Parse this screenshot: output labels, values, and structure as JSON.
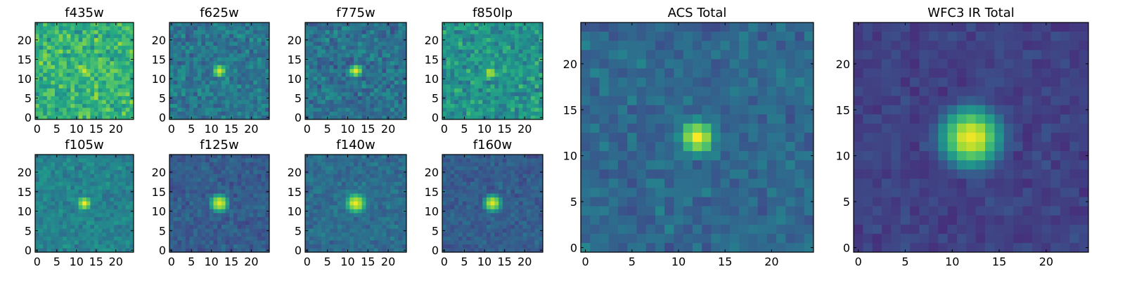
{
  "figure": "multi-band image cutouts",
  "colormap": "viridis",
  "colors": {
    "low": "#440154",
    "mid": "#21918c",
    "high": "#fde725",
    "frame": "#000000"
  },
  "chart_data": [
    {
      "type": "heatmap",
      "title": "f435w",
      "xlim": [
        0,
        24
      ],
      "ylim": [
        0,
        24
      ],
      "xticks": [
        "0",
        "5",
        "10",
        "15",
        "20"
      ],
      "yticks": [
        "0",
        "5",
        "10",
        "15",
        "20"
      ],
      "grid_size": 25,
      "source_center": [
        12,
        12
      ],
      "source_sigma": 1.6,
      "peak": 0.95,
      "background": 0.65,
      "noise": 0.22,
      "seed": 11
    },
    {
      "type": "heatmap",
      "title": "f625w",
      "xlim": [
        0,
        24
      ],
      "ylim": [
        0,
        24
      ],
      "xticks": [
        "0",
        "5",
        "10",
        "15",
        "20"
      ],
      "yticks": [
        "0",
        "5",
        "10",
        "15",
        "20"
      ],
      "grid_size": 25,
      "source_center": [
        12,
        12
      ],
      "source_sigma": 1.5,
      "peak": 0.97,
      "background": 0.4,
      "noise": 0.16,
      "seed": 23
    },
    {
      "type": "heatmap",
      "title": "f775w",
      "xlim": [
        0,
        24
      ],
      "ylim": [
        0,
        24
      ],
      "xticks": [
        "0",
        "5",
        "10",
        "15",
        "20"
      ],
      "yticks": [
        "0",
        "5",
        "10",
        "15",
        "20"
      ],
      "grid_size": 25,
      "source_center": [
        12,
        12
      ],
      "source_sigma": 1.5,
      "peak": 0.97,
      "background": 0.38,
      "noise": 0.17,
      "seed": 37
    },
    {
      "type": "heatmap",
      "title": "f850lp",
      "xlim": [
        0,
        24
      ],
      "ylim": [
        0,
        24
      ],
      "xticks": [
        "0",
        "5",
        "10",
        "15",
        "20"
      ],
      "yticks": [
        "0",
        "5",
        "10",
        "15",
        "20"
      ],
      "grid_size": 25,
      "source_center": [
        11.5,
        11.5
      ],
      "source_sigma": 1.6,
      "peak": 0.9,
      "background": 0.52,
      "noise": 0.2,
      "seed": 41
    },
    {
      "type": "heatmap",
      "title": "f105w",
      "xlim": [
        0,
        24
      ],
      "ylim": [
        0,
        24
      ],
      "xticks": [
        "0",
        "5",
        "10",
        "15",
        "20"
      ],
      "yticks": [
        "0",
        "5",
        "10",
        "15",
        "20"
      ],
      "grid_size": 25,
      "source_center": [
        12,
        12
      ],
      "source_sigma": 1.7,
      "peak": 0.97,
      "background": 0.45,
      "noise": 0.12,
      "seed": 53
    },
    {
      "type": "heatmap",
      "title": "f125w",
      "xlim": [
        0,
        24
      ],
      "ylim": [
        0,
        24
      ],
      "xticks": [
        "0",
        "5",
        "10",
        "15",
        "20"
      ],
      "yticks": [
        "0",
        "5",
        "10",
        "15",
        "20"
      ],
      "grid_size": 25,
      "source_center": [
        12,
        12
      ],
      "source_sigma": 2.0,
      "peak": 0.98,
      "background": 0.3,
      "noise": 0.1,
      "seed": 67
    },
    {
      "type": "heatmap",
      "title": "f140w",
      "xlim": [
        0,
        24
      ],
      "ylim": [
        0,
        24
      ],
      "xticks": [
        "0",
        "5",
        "10",
        "15",
        "20"
      ],
      "yticks": [
        "0",
        "5",
        "10",
        "15",
        "20"
      ],
      "grid_size": 25,
      "source_center": [
        12,
        12
      ],
      "source_sigma": 2.3,
      "peak": 0.98,
      "background": 0.36,
      "noise": 0.11,
      "seed": 71
    },
    {
      "type": "heatmap",
      "title": "f160w",
      "xlim": [
        0,
        24
      ],
      "ylim": [
        0,
        24
      ],
      "xticks": [
        "0",
        "5",
        "10",
        "15",
        "20"
      ],
      "yticks": [
        "0",
        "5",
        "10",
        "15",
        "20"
      ],
      "grid_size": 25,
      "source_center": [
        12,
        12
      ],
      "source_sigma": 1.9,
      "peak": 0.96,
      "background": 0.3,
      "noise": 0.1,
      "seed": 83
    },
    {
      "type": "heatmap",
      "title": "ACS Total",
      "xlim": [
        0,
        24
      ],
      "ylim": [
        0,
        24
      ],
      "xticks": [
        "0",
        "5",
        "10",
        "15",
        "20"
      ],
      "yticks": [
        "0",
        "5",
        "10",
        "15",
        "20"
      ],
      "grid_size": 25,
      "source_center": [
        12,
        12
      ],
      "source_sigma": 1.7,
      "peak": 0.98,
      "background": 0.34,
      "noise": 0.12,
      "seed": 97
    },
    {
      "type": "heatmap",
      "title": "WFC3 IR Total",
      "xlim": [
        0,
        24
      ],
      "ylim": [
        0,
        24
      ],
      "xticks": [
        "0",
        "5",
        "10",
        "15",
        "20"
      ],
      "yticks": [
        "0",
        "5",
        "10",
        "15",
        "20"
      ],
      "grid_size": 25,
      "source_center": [
        12,
        12
      ],
      "source_sigma": 2.6,
      "peak": 0.99,
      "background": 0.2,
      "noise": 0.07,
      "seed": 101
    }
  ]
}
